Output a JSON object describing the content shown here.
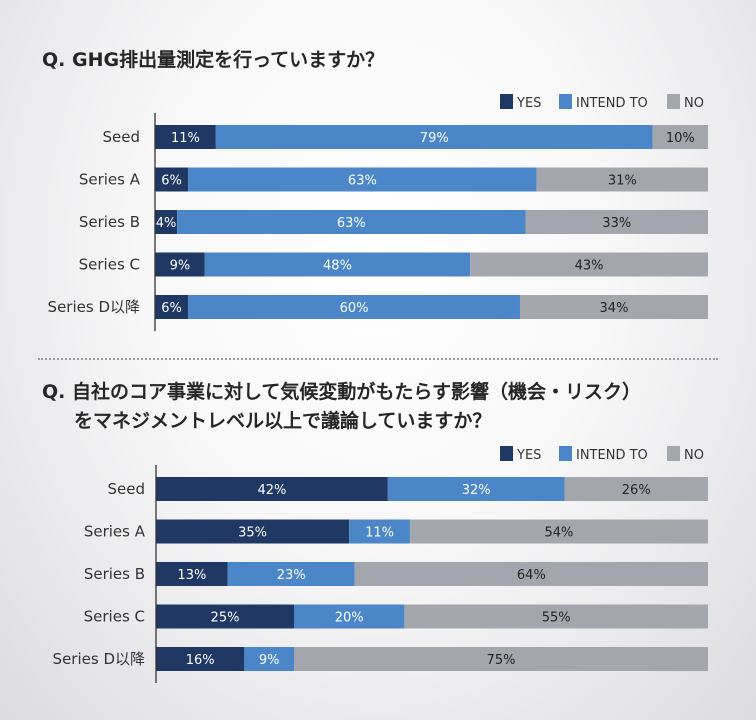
{
  "colors": {
    "yes": "#1f3864",
    "intend": "#4a86c8",
    "no": "#a3a7ad",
    "axis": "#333333"
  },
  "questions": [
    {
      "line1": "Q. GHG排出量測定を行っていますか？",
      "line2": ""
    },
    {
      "line1": "Q. 自社のコア事業に対して気候変動がもたらす影響（機会・リスク）",
      "line2": "をマネジメントレベル以上で議論していますか？"
    }
  ],
  "chart_data": [
    {
      "type": "bar",
      "orientation": "horizontal",
      "stacked": true,
      "legend_position": "top-right",
      "categories": [
        "Seed",
        "Series A",
        "Series B",
        "Series C",
        "Series D以降"
      ],
      "series": [
        {
          "name": "YES",
          "values": [
            11,
            6,
            4,
            9,
            6
          ]
        },
        {
          "name": "INTEND TO",
          "values": [
            79,
            63,
            63,
            48,
            60
          ]
        },
        {
          "name": "NO",
          "values": [
            10,
            31,
            33,
            43,
            34
          ]
        }
      ],
      "value_labels": [
        [
          "11%",
          "6%",
          "4%",
          "9%",
          "6%"
        ],
        [
          "79%",
          "63%",
          "63%",
          "48%",
          "60%"
        ],
        [
          "10%",
          "31%",
          "33%",
          "43%",
          "34%"
        ]
      ],
      "xlim": [
        0,
        100
      ]
    },
    {
      "type": "bar",
      "orientation": "horizontal",
      "stacked": true,
      "legend_position": "top-right",
      "categories": [
        "Seed",
        "Series A",
        "Series B",
        "Series C",
        "Series D以降"
      ],
      "series": [
        {
          "name": "YES",
          "values": [
            42,
            35,
            13,
            25,
            16
          ]
        },
        {
          "name": "INTEND TO",
          "values": [
            32,
            11,
            23,
            20,
            9
          ]
        },
        {
          "name": "NO",
          "values": [
            26,
            54,
            64,
            55,
            75
          ]
        }
      ],
      "value_labels": [
        [
          "42%",
          "35%",
          "13%",
          "25%",
          "16%"
        ],
        [
          "32%",
          "11%",
          "23%",
          "20%",
          "9%"
        ],
        [
          "26%",
          "54%",
          "64%",
          "55%",
          "75%"
        ]
      ],
      "xlim": [
        0,
        100
      ]
    }
  ]
}
